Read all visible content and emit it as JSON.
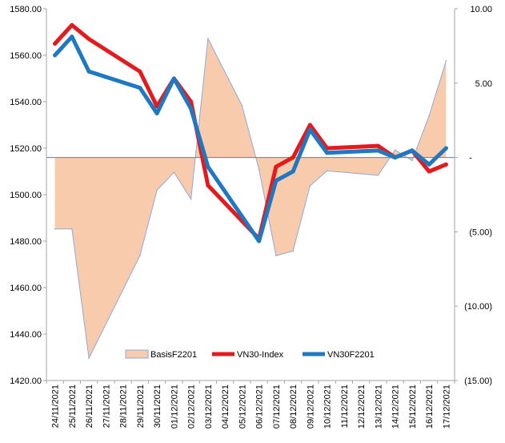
{
  "chart_data": {
    "type": "line",
    "categories": [
      "24/11/2021",
      "25/11/2021",
      "26/11/2021",
      "27/11/2021",
      "28/11/2021",
      "29/11/2021",
      "30/11/2021",
      "01/12/2021",
      "02/12/2021",
      "03/12/2021",
      "04/12/2021",
      "05/12/2021",
      "06/12/2021",
      "07/12/2021",
      "08/12/2021",
      "09/12/2021",
      "10/12/2021",
      "11/12/2021",
      "12/12/2021",
      "13/12/2021",
      "14/12/2021",
      "15/12/2021",
      "16/12/2021",
      "17/12/2021"
    ],
    "series": [
      {
        "name": "BasisF2201",
        "type": "area",
        "axis": "right",
        "color": "#F8CBAD",
        "edge_color": "#8EA9DB",
        "points": [
          {
            "x": 0,
            "y": -4.8
          },
          {
            "x": 1,
            "y": -4.8
          },
          {
            "x": 2,
            "y": -13.5
          },
          {
            "x": 5,
            "y": -6.6
          },
          {
            "x": 6,
            "y": -2.2
          },
          {
            "x": 7,
            "y": -1.0
          },
          {
            "x": 8,
            "y": -2.8
          },
          {
            "x": 9,
            "y": 8.0
          },
          {
            "x": 11,
            "y": 3.5
          },
          {
            "x": 12,
            "y": -0.8
          },
          {
            "x": 13,
            "y": -6.6
          },
          {
            "x": 14,
            "y": -6.3
          },
          {
            "x": 15,
            "y": -1.9
          },
          {
            "x": 16,
            "y": -0.9
          },
          {
            "x": 19,
            "y": -1.2
          },
          {
            "x": 20,
            "y": 0.5
          },
          {
            "x": 21,
            "y": -0.2
          },
          {
            "x": 22,
            "y": 2.8
          },
          {
            "x": 23,
            "y": 6.5
          }
        ]
      },
      {
        "name": "VN30-Index",
        "type": "line",
        "axis": "left",
        "color": "#E41A1C",
        "points": [
          {
            "x": 0,
            "y": 1565
          },
          {
            "x": 1,
            "y": 1573
          },
          {
            "x": 2,
            "y": 1567
          },
          {
            "x": 5,
            "y": 1553
          },
          {
            "x": 6,
            "y": 1538
          },
          {
            "x": 7,
            "y": 1550
          },
          {
            "x": 8,
            "y": 1540
          },
          {
            "x": 9,
            "y": 1504
          },
          {
            "x": 12,
            "y": 1481
          },
          {
            "x": 13,
            "y": 1512
          },
          {
            "x": 14,
            "y": 1516
          },
          {
            "x": 15,
            "y": 1530
          },
          {
            "x": 16,
            "y": 1520
          },
          {
            "x": 19,
            "y": 1521
          },
          {
            "x": 20,
            "y": 1516
          },
          {
            "x": 21,
            "y": 1519
          },
          {
            "x": 22,
            "y": 1510
          },
          {
            "x": 23,
            "y": 1513
          }
        ]
      },
      {
        "name": "VN30F2201",
        "type": "line",
        "axis": "left",
        "color": "#1F78C1",
        "points": [
          {
            "x": 0,
            "y": 1560
          },
          {
            "x": 1,
            "y": 1568
          },
          {
            "x": 2,
            "y": 1553
          },
          {
            "x": 5,
            "y": 1546
          },
          {
            "x": 6,
            "y": 1535
          },
          {
            "x": 7,
            "y": 1550
          },
          {
            "x": 8,
            "y": 1537
          },
          {
            "x": 9,
            "y": 1512
          },
          {
            "x": 12,
            "y": 1480
          },
          {
            "x": 13,
            "y": 1506
          },
          {
            "x": 14,
            "y": 1510
          },
          {
            "x": 15,
            "y": 1528
          },
          {
            "x": 16,
            "y": 1518
          },
          {
            "x": 19,
            "y": 1519
          },
          {
            "x": 20,
            "y": 1516
          },
          {
            "x": 21,
            "y": 1519
          },
          {
            "x": 22,
            "y": 1513
          },
          {
            "x": 23,
            "y": 1520
          }
        ]
      }
    ],
    "y_left": {
      "range": [
        1420,
        1580
      ],
      "ticks": [
        1580,
        1560,
        1540,
        1520,
        1500,
        1480,
        1460,
        1440,
        1420
      ],
      "tick_labels": [
        "1580.00",
        "1560.00",
        "1540.00",
        "1520.00",
        "1500.00",
        "1480.00",
        "1460.00",
        "1440.00",
        "1420.00"
      ]
    },
    "y_right": {
      "range": [
        -15,
        10
      ],
      "ticks": [
        10,
        5,
        0,
        -5,
        -10,
        -15
      ],
      "tick_labels": [
        "10.00",
        "5.00",
        "-",
        "(5.00)",
        "(10.00)",
        "(15.00)"
      ]
    },
    "legend": {
      "position": "bottom-center",
      "entries": [
        "BasisF2201",
        "VN30-Index",
        "VN30F2201"
      ]
    },
    "grid": false
  }
}
